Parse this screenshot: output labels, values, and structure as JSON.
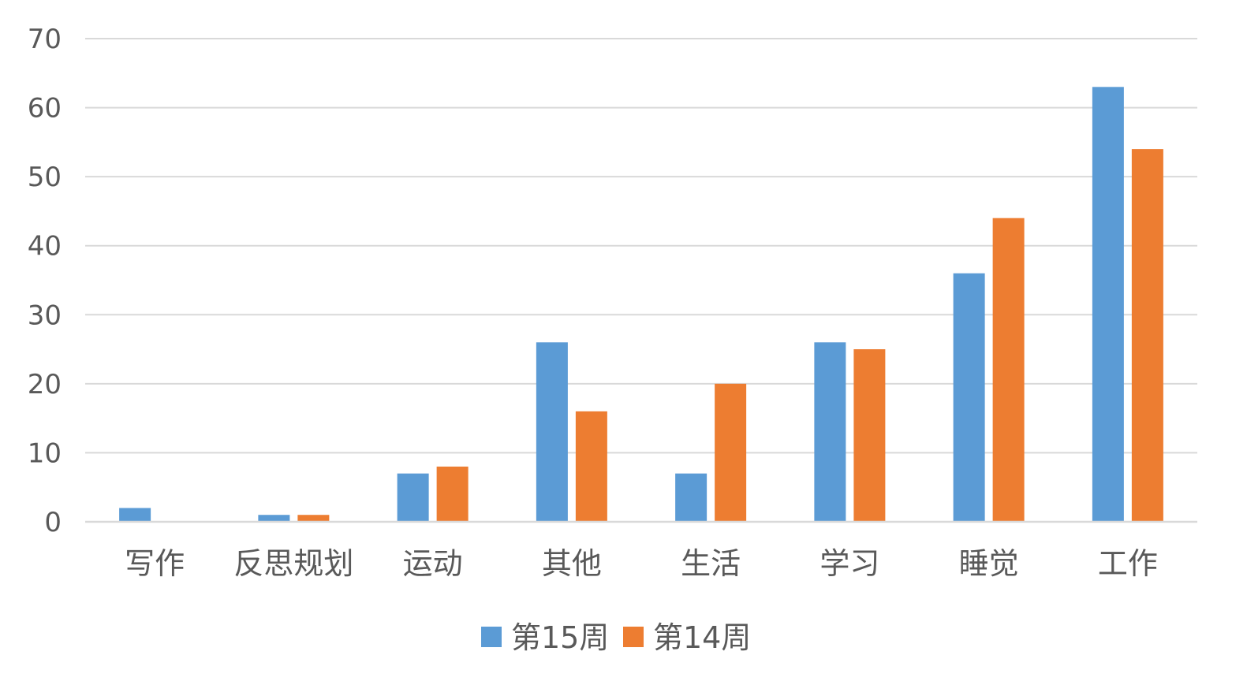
{
  "chart_data": {
    "type": "bar",
    "categories": [
      "写作",
      "反思规划",
      "运动",
      "其他",
      "生活",
      "学习",
      "睡觉",
      "工作"
    ],
    "series": [
      {
        "name": "第15周",
        "color": "#5b9bd5",
        "values": [
          2,
          1,
          7,
          26,
          7,
          26,
          36,
          63
        ]
      },
      {
        "name": "第14周",
        "color": "#ed7d31",
        "values": [
          0,
          1,
          8,
          16,
          20,
          25,
          44,
          54
        ]
      }
    ],
    "title": "",
    "xlabel": "",
    "ylabel": "",
    "ylim": [
      0,
      70
    ],
    "yticks": [
      0,
      10,
      20,
      30,
      40,
      50,
      60,
      70
    ],
    "grid": true,
    "legend_position": "bottom"
  }
}
